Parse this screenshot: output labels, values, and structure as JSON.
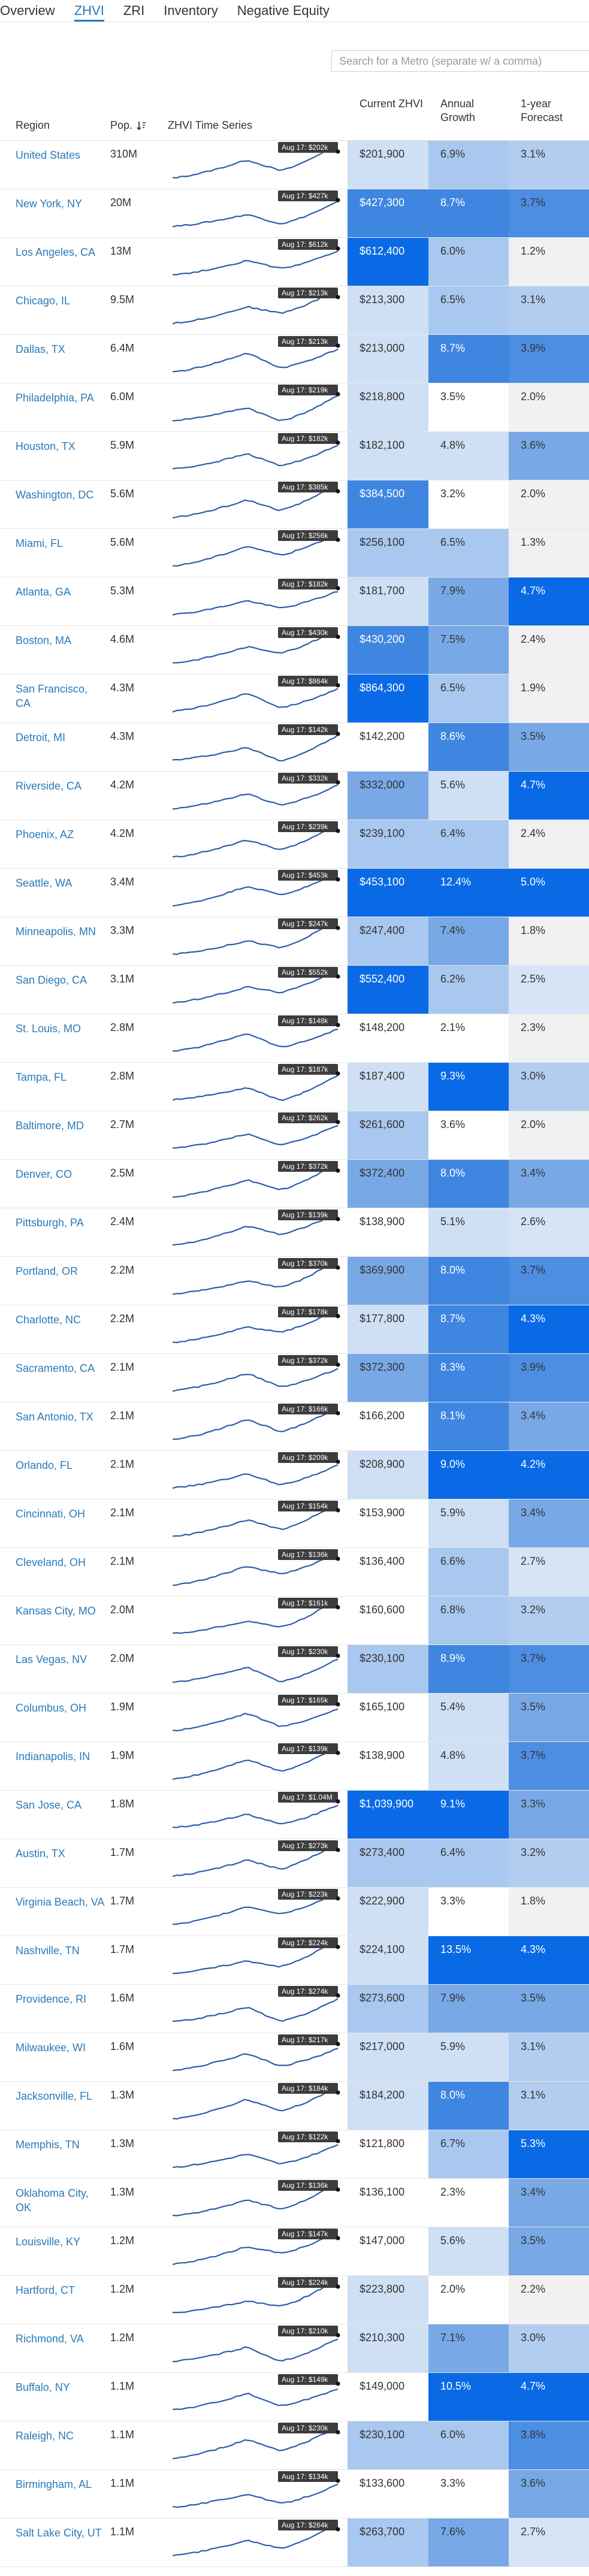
{
  "tabs": [
    {
      "label": "Overview",
      "active": false
    },
    {
      "label": "ZHVI",
      "active": true
    },
    {
      "label": "ZRI",
      "active": false
    },
    {
      "label": "Inventory",
      "active": false
    },
    {
      "label": "Negative Equity",
      "active": false
    }
  ],
  "search": {
    "placeholder": "Search for a Metro (separate w/ a comma)"
  },
  "columns": {
    "region": "Region",
    "pop": "Pop.",
    "series": "ZHVI Time Series",
    "current": "Current ZHVI",
    "growth": "Annual Growth",
    "forecast": "1-year Forecast"
  },
  "badge_month": "Aug 17",
  "colors": {
    "link": "#2a7ab8",
    "accent": "#2a7ab8",
    "spark": "#2a5ea8"
  },
  "rows": [
    {
      "region": "United States",
      "pop": "310M",
      "badge": "$202k",
      "zhvi": "$201,900",
      "growth": "6.9%",
      "forecast": "3.1%"
    },
    {
      "region": "New York, NY",
      "pop": "20M",
      "badge": "$427k",
      "zhvi": "$427,300",
      "growth": "8.7%",
      "forecast": "3.7%"
    },
    {
      "region": "Los Angeles, CA",
      "pop": "13M",
      "badge": "$612k",
      "zhvi": "$612,400",
      "growth": "6.0%",
      "forecast": "1.2%"
    },
    {
      "region": "Chicago, IL",
      "pop": "9.5M",
      "badge": "$213k",
      "zhvi": "$213,300",
      "growth": "6.5%",
      "forecast": "3.1%"
    },
    {
      "region": "Dallas, TX",
      "pop": "6.4M",
      "badge": "$213k",
      "zhvi": "$213,000",
      "growth": "8.7%",
      "forecast": "3.9%"
    },
    {
      "region": "Philadelphia, PA",
      "pop": "6.0M",
      "badge": "$219k",
      "zhvi": "$218,800",
      "growth": "3.5%",
      "forecast": "2.0%"
    },
    {
      "region": "Houston, TX",
      "pop": "5.9M",
      "badge": "$182k",
      "zhvi": "$182,100",
      "growth": "4.8%",
      "forecast": "3.6%"
    },
    {
      "region": "Washington, DC",
      "pop": "5.6M",
      "badge": "$385k",
      "zhvi": "$384,500",
      "growth": "3.2%",
      "forecast": "2.0%"
    },
    {
      "region": "Miami, FL",
      "pop": "5.6M",
      "badge": "$256k",
      "zhvi": "$256,100",
      "growth": "6.5%",
      "forecast": "1.3%"
    },
    {
      "region": "Atlanta, GA",
      "pop": "5.3M",
      "badge": "$182k",
      "zhvi": "$181,700",
      "growth": "7.9%",
      "forecast": "4.7%"
    },
    {
      "region": "Boston, MA",
      "pop": "4.6M",
      "badge": "$430k",
      "zhvi": "$430,200",
      "growth": "7.5%",
      "forecast": "2.4%"
    },
    {
      "region": "San Francisco, CA",
      "pop": "4.3M",
      "badge": "$864k",
      "zhvi": "$864,300",
      "growth": "6.5%",
      "forecast": "1.9%"
    },
    {
      "region": "Detroit, MI",
      "pop": "4.3M",
      "badge": "$142k",
      "zhvi": "$142,200",
      "growth": "8.6%",
      "forecast": "3.5%"
    },
    {
      "region": "Riverside, CA",
      "pop": "4.2M",
      "badge": "$332k",
      "zhvi": "$332,000",
      "growth": "5.6%",
      "forecast": "4.7%"
    },
    {
      "region": "Phoenix, AZ",
      "pop": "4.2M",
      "badge": "$239k",
      "zhvi": "$239,100",
      "growth": "6.4%",
      "forecast": "2.4%"
    },
    {
      "region": "Seattle, WA",
      "pop": "3.4M",
      "badge": "$453k",
      "zhvi": "$453,100",
      "growth": "12.4%",
      "forecast": "5.0%"
    },
    {
      "region": "Minneapolis, MN",
      "pop": "3.3M",
      "badge": "$247k",
      "zhvi": "$247,400",
      "growth": "7.4%",
      "forecast": "1.8%"
    },
    {
      "region": "San Diego, CA",
      "pop": "3.1M",
      "badge": "$552k",
      "zhvi": "$552,400",
      "growth": "6.2%",
      "forecast": "2.5%"
    },
    {
      "region": "St. Louis, MO",
      "pop": "2.8M",
      "badge": "$148k",
      "zhvi": "$148,200",
      "growth": "2.1%",
      "forecast": "2.3%"
    },
    {
      "region": "Tampa, FL",
      "pop": "2.8M",
      "badge": "$187k",
      "zhvi": "$187,400",
      "growth": "9.3%",
      "forecast": "3.0%"
    },
    {
      "region": "Baltimore, MD",
      "pop": "2.7M",
      "badge": "$262k",
      "zhvi": "$261,600",
      "growth": "3.6%",
      "forecast": "2.0%"
    },
    {
      "region": "Denver, CO",
      "pop": "2.5M",
      "badge": "$372k",
      "zhvi": "$372,400",
      "growth": "8.0%",
      "forecast": "3.4%"
    },
    {
      "region": "Pittsburgh, PA",
      "pop": "2.4M",
      "badge": "$139k",
      "zhvi": "$138,900",
      "growth": "5.1%",
      "forecast": "2.6%"
    },
    {
      "region": "Portland, OR",
      "pop": "2.2M",
      "badge": "$370k",
      "zhvi": "$369,900",
      "growth": "8.0%",
      "forecast": "3.7%"
    },
    {
      "region": "Charlotte, NC",
      "pop": "2.2M",
      "badge": "$178k",
      "zhvi": "$177,800",
      "growth": "8.7%",
      "forecast": "4.3%"
    },
    {
      "region": "Sacramento, CA",
      "pop": "2.1M",
      "badge": "$372k",
      "zhvi": "$372,300",
      "growth": "8.3%",
      "forecast": "3.9%"
    },
    {
      "region": "San Antonio, TX",
      "pop": "2.1M",
      "badge": "$166k",
      "zhvi": "$166,200",
      "growth": "8.1%",
      "forecast": "3.4%"
    },
    {
      "region": "Orlando, FL",
      "pop": "2.1M",
      "badge": "$209k",
      "zhvi": "$208,900",
      "growth": "9.0%",
      "forecast": "4.2%"
    },
    {
      "region": "Cincinnati, OH",
      "pop": "2.1M",
      "badge": "$154k",
      "zhvi": "$153,900",
      "growth": "5.9%",
      "forecast": "3.4%"
    },
    {
      "region": "Cleveland, OH",
      "pop": "2.1M",
      "badge": "$136k",
      "zhvi": "$136,400",
      "growth": "6.6%",
      "forecast": "2.7%"
    },
    {
      "region": "Kansas City, MO",
      "pop": "2.0M",
      "badge": "$161k",
      "zhvi": "$160,600",
      "growth": "6.8%",
      "forecast": "3.2%"
    },
    {
      "region": "Las Vegas, NV",
      "pop": "2.0M",
      "badge": "$230k",
      "zhvi": "$230,100",
      "growth": "8.9%",
      "forecast": "3.7%"
    },
    {
      "region": "Columbus, OH",
      "pop": "1.9M",
      "badge": "$165k",
      "zhvi": "$165,100",
      "growth": "5.4%",
      "forecast": "3.5%"
    },
    {
      "region": "Indianapolis, IN",
      "pop": "1.9M",
      "badge": "$139k",
      "zhvi": "$138,900",
      "growth": "4.8%",
      "forecast": "3.7%"
    },
    {
      "region": "San Jose, CA",
      "pop": "1.8M",
      "badge": "$1.04M",
      "zhvi": "$1,039,900",
      "growth": "9.1%",
      "forecast": "3.3%"
    },
    {
      "region": "Austin, TX",
      "pop": "1.7M",
      "badge": "$273k",
      "zhvi": "$273,400",
      "growth": "6.4%",
      "forecast": "3.2%"
    },
    {
      "region": "Virginia Beach, VA",
      "pop": "1.7M",
      "badge": "$223k",
      "zhvi": "$222,900",
      "growth": "3.3%",
      "forecast": "1.8%"
    },
    {
      "region": "Nashville, TN",
      "pop": "1.7M",
      "badge": "$224k",
      "zhvi": "$224,100",
      "growth": "13.5%",
      "forecast": "4.3%"
    },
    {
      "region": "Providence, RI",
      "pop": "1.6M",
      "badge": "$274k",
      "zhvi": "$273,600",
      "growth": "7.9%",
      "forecast": "3.5%"
    },
    {
      "region": "Milwaukee, WI",
      "pop": "1.6M",
      "badge": "$217k",
      "zhvi": "$217,000",
      "growth": "5.9%",
      "forecast": "3.1%"
    },
    {
      "region": "Jacksonville, FL",
      "pop": "1.3M",
      "badge": "$184k",
      "zhvi": "$184,200",
      "growth": "8.0%",
      "forecast": "3.1%"
    },
    {
      "region": "Memphis, TN",
      "pop": "1.3M",
      "badge": "$122k",
      "zhvi": "$121,800",
      "growth": "6.7%",
      "forecast": "5.3%"
    },
    {
      "region": "Oklahoma City, OK",
      "pop": "1.3M",
      "badge": "$136k",
      "zhvi": "$136,100",
      "growth": "2.3%",
      "forecast": "3.4%"
    },
    {
      "region": "Louisville, KY",
      "pop": "1.2M",
      "badge": "$147k",
      "zhvi": "$147,000",
      "growth": "5.6%",
      "forecast": "3.5%"
    },
    {
      "region": "Hartford, CT",
      "pop": "1.2M",
      "badge": "$224k",
      "zhvi": "$223,800",
      "growth": "2.0%",
      "forecast": "2.2%"
    },
    {
      "region": "Richmond, VA",
      "pop": "1.2M",
      "badge": "$210k",
      "zhvi": "$210,300",
      "growth": "7.1%",
      "forecast": "3.0%"
    },
    {
      "region": "Buffalo, NY",
      "pop": "1.1M",
      "badge": "$149k",
      "zhvi": "$149,000",
      "growth": "10.5%",
      "forecast": "4.7%"
    },
    {
      "region": "Raleigh, NC",
      "pop": "1.1M",
      "badge": "$230k",
      "zhvi": "$230,100",
      "growth": "6.0%",
      "forecast": "3.8%"
    },
    {
      "region": "Birmingham, AL",
      "pop": "1.1M",
      "badge": "$134k",
      "zhvi": "$133,600",
      "growth": "3.3%",
      "forecast": "3.6%"
    },
    {
      "region": "Salt Lake City, UT",
      "pop": "1.1M",
      "badge": "$264k",
      "zhvi": "$263,700",
      "growth": "7.6%",
      "forecast": "2.7%"
    }
  ]
}
